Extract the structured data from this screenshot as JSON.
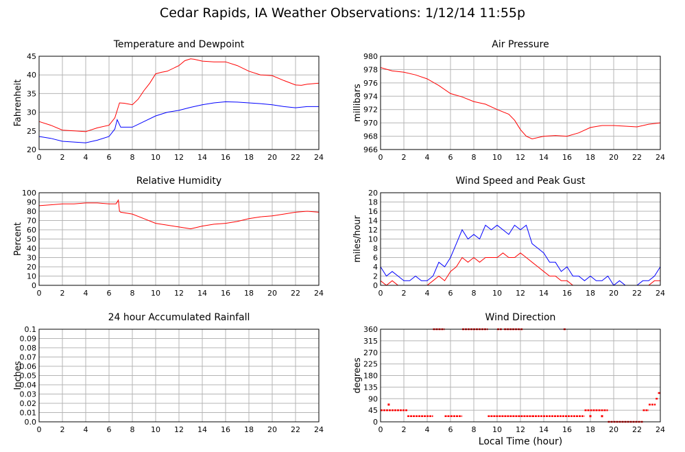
{
  "page": {
    "title": "Cedar Rapids, IA Weather Observations: 1/12/14 11:55p"
  },
  "x_axis": {
    "label": "Local Time (hour)"
  },
  "chart_data": [
    {
      "type": "line",
      "title": "Temperature and Dewpoint",
      "ylabel": "Fahrenheit",
      "xlim": [
        0,
        24
      ],
      "ylim": [
        20,
        45
      ],
      "xticks": [
        0,
        2,
        4,
        6,
        8,
        10,
        12,
        14,
        16,
        18,
        20,
        22,
        24
      ],
      "yticks": [
        20,
        25,
        30,
        35,
        40,
        45
      ],
      "grid": true,
      "series": [
        {
          "color": "#ff0000",
          "x": [
            0,
            1,
            2,
            3,
            4,
            5,
            6,
            6.5,
            6.9,
            7.3,
            8,
            8.5,
            9,
            9.5,
            10,
            10.5,
            11,
            12,
            12.5,
            13,
            13.3,
            14,
            15,
            16,
            17,
            18,
            19,
            20,
            21,
            22,
            22.5,
            23,
            24
          ],
          "y": [
            27.5,
            26.5,
            25.2,
            25.0,
            24.8,
            25.8,
            26.5,
            28.5,
            32.5,
            32.4,
            32.0,
            33.5,
            35.8,
            37.8,
            40.3,
            40.7,
            41.0,
            42.5,
            43.8,
            44.3,
            44.2,
            43.7,
            43.5,
            43.5,
            42.5,
            41.0,
            40.0,
            39.8,
            38.5,
            37.3,
            37.2,
            37.5,
            37.8
          ]
        },
        {
          "color": "#0000ff",
          "x": [
            0,
            1,
            2,
            3,
            4,
            5,
            6,
            6.5,
            6.7,
            7,
            8,
            9,
            10,
            11,
            12,
            13,
            14,
            15,
            16,
            17,
            18,
            19,
            20,
            21,
            22,
            23,
            24
          ],
          "y": [
            23.5,
            23.0,
            22.2,
            22.0,
            21.8,
            22.5,
            23.5,
            25.5,
            28.0,
            26.0,
            26.0,
            27.5,
            29.0,
            30.0,
            30.5,
            31.3,
            32.0,
            32.5,
            32.8,
            32.7,
            32.5,
            32.3,
            32.0,
            31.5,
            31.2,
            31.5,
            31.5
          ]
        }
      ]
    },
    {
      "type": "line",
      "title": "Air Pressure",
      "ylabel": "millibars",
      "xlim": [
        0,
        24
      ],
      "ylim": [
        966,
        980
      ],
      "xticks": [
        0,
        2,
        4,
        6,
        8,
        10,
        12,
        14,
        16,
        18,
        20,
        22,
        24
      ],
      "yticks": [
        966,
        968,
        970,
        972,
        974,
        976,
        978,
        980
      ],
      "grid": true,
      "series": [
        {
          "color": "#ff0000",
          "x": [
            0,
            1,
            2,
            3,
            4,
            5,
            6,
            7,
            8,
            9,
            10,
            11,
            11.5,
            12,
            12.5,
            13,
            14,
            15,
            16,
            17,
            18,
            19,
            20,
            21,
            22,
            23,
            24
          ],
          "y": [
            978.3,
            977.8,
            977.6,
            977.2,
            976.6,
            975.6,
            974.4,
            973.9,
            973.2,
            972.8,
            972.0,
            971.3,
            970.4,
            969.0,
            968.0,
            967.6,
            968.0,
            968.1,
            968.0,
            968.5,
            969.3,
            969.6,
            969.6,
            969.5,
            969.4,
            969.8,
            970.0
          ]
        }
      ]
    },
    {
      "type": "line",
      "title": "Relative Humidity",
      "ylabel": "Percent",
      "xlim": [
        0,
        24
      ],
      "ylim": [
        0,
        100
      ],
      "xticks": [
        0,
        2,
        4,
        6,
        8,
        10,
        12,
        14,
        16,
        18,
        20,
        22,
        24
      ],
      "yticks": [
        0,
        10,
        20,
        30,
        40,
        50,
        60,
        70,
        80,
        90,
        100
      ],
      "grid": true,
      "series": [
        {
          "color": "#ff0000",
          "x": [
            0,
            1,
            2,
            3,
            4,
            5,
            6,
            6.6,
            6.8,
            6.9,
            7,
            8,
            9,
            10,
            11,
            12,
            13,
            14,
            15,
            16,
            17,
            18,
            19,
            20,
            21,
            22,
            23,
            24
          ],
          "y": [
            86,
            87,
            88,
            88,
            89,
            89,
            88,
            88,
            92,
            80,
            79,
            77,
            72,
            67,
            65,
            63,
            61,
            64,
            66,
            67,
            69,
            72,
            74,
            75,
            77,
            79,
            80,
            79
          ]
        }
      ]
    },
    {
      "type": "line",
      "title": "Wind Speed and Peak Gust",
      "ylabel": "miles/hour",
      "xlim": [
        0,
        24
      ],
      "ylim": [
        0,
        20
      ],
      "xticks": [
        0,
        2,
        4,
        6,
        8,
        10,
        12,
        14,
        16,
        18,
        20,
        22,
        24
      ],
      "yticks": [
        0,
        2,
        4,
        6,
        8,
        10,
        12,
        14,
        16,
        18,
        20
      ],
      "grid": true,
      "series": [
        {
          "color": "#0000ff",
          "x": [
            0,
            0.5,
            1,
            1.5,
            2,
            2.5,
            3,
            3.5,
            4,
            4.5,
            5,
            5.5,
            6,
            6.5,
            7,
            7.5,
            8,
            8.5,
            9,
            9.5,
            10,
            10.5,
            11,
            11.5,
            12,
            12.5,
            13,
            13.5,
            14,
            14.5,
            15,
            15.5,
            16,
            16.5,
            17,
            17.5,
            18,
            18.5,
            19,
            19.5,
            20,
            20.5,
            21,
            21.5,
            22,
            22.5,
            23,
            23.5,
            24
          ],
          "y": [
            4,
            2,
            3,
            2,
            1,
            1,
            2,
            1,
            1,
            2,
            5,
            4,
            6,
            9,
            12,
            10,
            11,
            10,
            13,
            12,
            13,
            12,
            11,
            13,
            12,
            13,
            9,
            8,
            7,
            5,
            5,
            3,
            4,
            2,
            2,
            1,
            2,
            1,
            1,
            2,
            0,
            1,
            0,
            0,
            0,
            1,
            1,
            2,
            4
          ]
        },
        {
          "color": "#ff0000",
          "x": [
            0,
            0.5,
            1,
            1.5,
            2,
            2.5,
            3,
            3.5,
            4,
            4.5,
            5,
            5.5,
            6,
            6.5,
            7,
            7.5,
            8,
            8.5,
            9,
            9.5,
            10,
            10.5,
            11,
            11.5,
            12,
            12.5,
            13,
            13.5,
            14,
            14.5,
            15,
            15.5,
            16,
            16.5,
            17,
            17.5,
            18,
            18.5,
            19,
            19.5,
            20,
            20.5,
            21,
            21.5,
            22,
            22.5,
            23,
            23.5,
            24
          ],
          "y": [
            1,
            0,
            1,
            0,
            0,
            0,
            0,
            0,
            0,
            1,
            2,
            1,
            3,
            4,
            6,
            5,
            6,
            5,
            6,
            6,
            6,
            7,
            6,
            6,
            7,
            6,
            5,
            4,
            3,
            2,
            2,
            1,
            1,
            0,
            0,
            0,
            0,
            0,
            0,
            0,
            0,
            0,
            0,
            0,
            0,
            0,
            0,
            1,
            1
          ]
        }
      ]
    },
    {
      "type": "line",
      "title": "24 hour Accumulated Rainfall",
      "ylabel": "Inches",
      "xlim": [
        0,
        24
      ],
      "ylim": [
        0,
        0.1
      ],
      "xticks": [
        0,
        2,
        4,
        6,
        8,
        10,
        12,
        14,
        16,
        18,
        20,
        22,
        24
      ],
      "yticks": [
        0.0,
        0.01,
        0.02,
        0.03,
        0.04,
        0.05,
        0.06,
        0.07,
        0.08,
        0.09,
        0.1
      ],
      "ytick_labels": [
        "0.0",
        "0.01",
        "0.02",
        "0.03",
        "0.04",
        "0.05",
        "0.06",
        "0.07",
        "0.08",
        "0.09",
        "0.1"
      ],
      "grid": true,
      "series": [
        {
          "color": "#ff0000",
          "x": [
            0,
            24
          ],
          "y": [
            0,
            0
          ]
        }
      ]
    },
    {
      "type": "scatter",
      "title": "Wind Direction",
      "ylabel": "degrees",
      "xlabel": "Local Time (hour)",
      "xlim": [
        0,
        24
      ],
      "ylim": [
        0,
        360
      ],
      "xticks": [
        0,
        2,
        4,
        6,
        8,
        10,
        12,
        14,
        16,
        18,
        20,
        22,
        24
      ],
      "yticks": [
        0,
        45,
        90,
        135,
        180,
        225,
        270,
        315,
        360
      ],
      "grid": true,
      "series": [
        {
          "color": "#ff0000",
          "segments": [
            [
              0.0,
              2.3,
              45
            ],
            [
              2.3,
              4.5,
              22
            ],
            [
              4.5,
              5.5,
              360
            ],
            [
              5.5,
              6.0,
              22
            ],
            [
              6.0,
              7.0,
              22
            ],
            [
              7.0,
              9.2,
              360
            ],
            [
              9.2,
              13.0,
              22
            ],
            [
              13.0,
              17.5,
              22
            ],
            [
              17.5,
              19.5,
              45
            ],
            [
              19.5,
              22.5,
              0
            ],
            [
              22.5,
              23.0,
              45
            ],
            [
              23.0,
              23.6,
              67
            ],
            [
              23.6,
              23.8,
              90
            ],
            [
              23.8,
              24.0,
              112
            ],
            [
              10.0,
              10.4,
              360
            ],
            [
              10.6,
              11.3,
              360
            ],
            [
              11.3,
              12.2,
              360
            ],
            [
              15.7,
              15.9,
              360
            ]
          ],
          "points": [
            [
              0.7,
              67
            ],
            [
              18.0,
              22
            ],
            [
              19.0,
              22
            ]
          ]
        }
      ]
    }
  ]
}
